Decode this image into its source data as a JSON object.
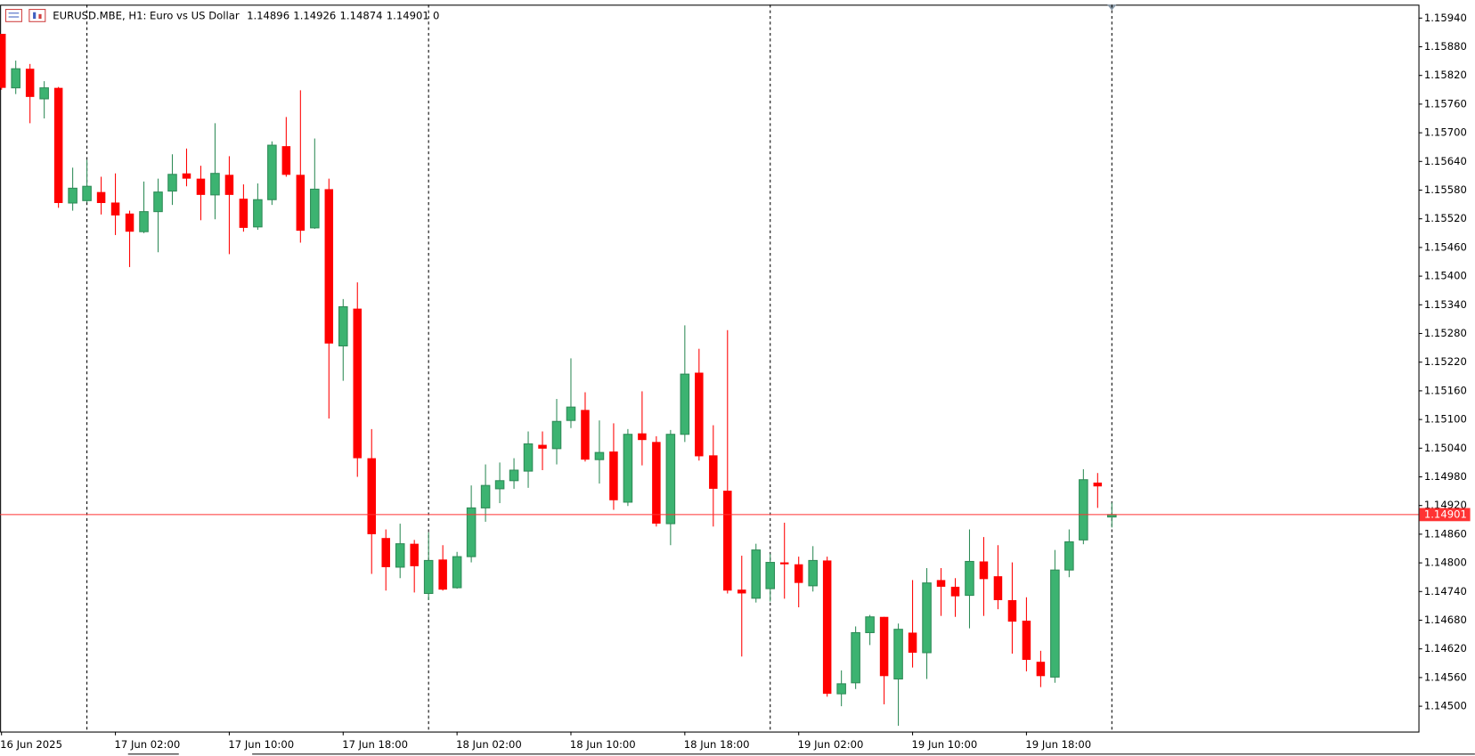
{
  "chart_data": {
    "type": "candlestick",
    "title": "EURUSD.MBE, H1:  Euro vs US Dollar",
    "spread": 0,
    "up_color": "#3cb371",
    "down_color": "#ff0000",
    "price_line_color": "#ff3333",
    "categories": [
      "16 Jun 2025",
      null,
      null,
      null,
      null,
      null,
      null,
      null,
      "17 Jun 02:00",
      null,
      null,
      null,
      null,
      null,
      null,
      null,
      "17 Jun 10:00",
      null,
      null,
      null,
      null,
      null,
      null,
      null,
      "17 Jun 18:00",
      null,
      null,
      null,
      null,
      null,
      null,
      null,
      "18 Jun 02:00",
      null,
      null,
      null,
      null,
      null,
      null,
      null,
      "18 Jun 10:00",
      null,
      null,
      null,
      null,
      null,
      null,
      null,
      "18 Jun 18:00",
      null,
      null,
      null,
      null,
      null,
      null,
      null,
      "19 Jun 02:00",
      null,
      null,
      null,
      null,
      null,
      null,
      null,
      "19 Jun 10:00",
      null,
      null,
      null,
      null,
      null,
      null,
      null,
      "19 Jun 18:00",
      null,
      null,
      null,
      null,
      null,
      null
    ],
    "open": [
      1.15907,
      1.15794,
      1.15834,
      1.15771,
      1.15794,
      1.15553,
      1.15558,
      1.15576,
      1.15554,
      1.15531,
      1.15493,
      1.15535,
      1.15578,
      1.15615,
      1.15604,
      1.1557,
      1.15612,
      1.15562,
      1.15503,
      1.1556,
      1.15672,
      1.15612,
      1.15501,
      1.15582,
      1.15254,
      1.15332,
      1.15019,
      1.14852,
      1.14791,
      1.1484,
      1.14736,
      1.14807,
      1.14748,
      1.14813,
      1.14915,
      1.14955,
      1.14972,
      1.14992,
      1.15047,
      1.15039,
      1.15098,
      1.1512,
      1.15016,
      1.15033,
      1.14927,
      1.15071,
      1.15053,
      1.14882,
      1.15069,
      1.15198,
      1.15025,
      1.14951,
      1.14744,
      1.14726,
      1.14746,
      1.14801,
      1.14797,
      1.14752,
      1.14805,
      1.14526,
      1.14549,
      1.14654,
      1.14687,
      1.14557,
      1.14654,
      1.14612,
      1.14764,
      1.1475,
      1.14732,
      1.14803,
      1.14772,
      1.14722,
      1.14679,
      1.14593,
      1.14561,
      1.14785,
      1.14848,
      1.14968,
      1.14896
    ],
    "high": [
      1.15907,
      1.15851,
      1.15844,
      1.15808,
      1.15796,
      1.15627,
      1.15643,
      1.15608,
      1.15615,
      1.15537,
      1.15598,
      1.15604,
      1.15655,
      1.15667,
      1.15631,
      1.1572,
      1.15651,
      1.15592,
      1.15594,
      1.15682,
      1.15733,
      1.15789,
      1.15688,
      1.15604,
      1.15352,
      1.15387,
      1.1508,
      1.1487,
      1.14882,
      1.14848,
      1.14864,
      1.14837,
      1.14823,
      1.14962,
      1.15006,
      1.1501,
      1.15019,
      1.15075,
      1.15075,
      1.15143,
      1.15228,
      1.15157,
      1.15098,
      1.15092,
      1.1508,
      1.15159,
      1.15065,
      1.15078,
      1.15297,
      1.15248,
      1.15088,
      1.15287,
      1.14815,
      1.1484,
      1.14819,
      1.14884,
      1.14813,
      1.14835,
      1.14813,
      1.14575,
      1.14667,
      1.14691,
      1.14687,
      1.14673,
      1.14764,
      1.14789,
      1.14789,
      1.14768,
      1.1487,
      1.14854,
      1.14837,
      1.14801,
      1.14728,
      1.14616,
      1.14827,
      1.1487,
      1.14996,
      1.14988,
      1.14926
    ],
    "low": [
      1.1579,
      1.15781,
      1.1572,
      1.1573,
      1.15543,
      1.15537,
      1.15554,
      1.15529,
      1.15486,
      1.15419,
      1.1549,
      1.1545,
      1.15549,
      1.15588,
      1.15517,
      1.15519,
      1.15446,
      1.15493,
      1.15497,
      1.15549,
      1.15608,
      1.1547,
      1.15499,
      1.15102,
      1.15181,
      1.1498,
      1.14777,
      1.14742,
      1.14768,
      1.14738,
      1.14722,
      1.14742,
      1.14746,
      1.14801,
      1.14886,
      1.14925,
      1.14955,
      1.14957,
      1.14994,
      1.15006,
      1.15082,
      1.15012,
      1.14966,
      1.14911,
      1.14919,
      1.15004,
      1.14876,
      1.14837,
      1.15053,
      1.15014,
      1.14876,
      1.14736,
      1.14604,
      1.14717,
      1.14719,
      1.14725,
      1.14707,
      1.1474,
      1.1452,
      1.145,
      1.14536,
      1.14628,
      1.14504,
      1.14459,
      1.14581,
      1.14557,
      1.14689,
      1.14687,
      1.14663,
      1.14689,
      1.14703,
      1.1461,
      1.14573,
      1.1454,
      1.14549,
      1.1477,
      1.14839,
      1.14915,
      1.14874
    ],
    "close": [
      1.15794,
      1.15834,
      1.15775,
      1.15794,
      1.15553,
      1.15584,
      1.15588,
      1.15553,
      1.15527,
      1.15493,
      1.15535,
      1.15576,
      1.15613,
      1.15604,
      1.1557,
      1.15615,
      1.1557,
      1.15501,
      1.1556,
      1.15674,
      1.15612,
      1.15495,
      1.15582,
      1.15259,
      1.15336,
      1.15019,
      1.1486,
      1.14791,
      1.1484,
      1.14793,
      1.14805,
      1.14744,
      1.14813,
      1.14915,
      1.14962,
      1.14972,
      1.14994,
      1.15049,
      1.15039,
      1.15096,
      1.15126,
      1.15016,
      1.15031,
      1.14931,
      1.15069,
      1.15057,
      1.14882,
      1.15069,
      1.15195,
      1.15023,
      1.14955,
      1.14742,
      1.14736,
      1.14827,
      1.14801,
      1.14797,
      1.14758,
      1.14805,
      1.14526,
      1.14547,
      1.14654,
      1.14687,
      1.14563,
      1.14661,
      1.14612,
      1.14758,
      1.1475,
      1.1473,
      1.14803,
      1.14766,
      1.14722,
      1.14677,
      1.14597,
      1.14563,
      1.14785,
      1.14844,
      1.14974,
      1.1496,
      1.14901
    ],
    "ylim": [
      1.14447,
      1.15968
    ],
    "yticks": [
      {
        "value": 1.1594,
        "label": "1.15940"
      },
      {
        "value": 1.1588,
        "label": "1.15880"
      },
      {
        "value": 1.1582,
        "label": "1.15820"
      },
      {
        "value": 1.1576,
        "label": "1.15760"
      },
      {
        "value": 1.157,
        "label": "1.15700"
      },
      {
        "value": 1.1564,
        "label": "1.15640"
      },
      {
        "value": 1.1558,
        "label": "1.15580"
      },
      {
        "value": 1.1552,
        "label": "1.15520"
      },
      {
        "value": 1.1546,
        "label": "1.15460"
      },
      {
        "value": 1.154,
        "label": "1.15400"
      },
      {
        "value": 1.1534,
        "label": "1.15340"
      },
      {
        "value": 1.1528,
        "label": "1.15280"
      },
      {
        "value": 1.1522,
        "label": "1.15220"
      },
      {
        "value": 1.1516,
        "label": "1.15160"
      },
      {
        "value": 1.151,
        "label": "1.15100"
      },
      {
        "value": 1.1504,
        "label": "1.15040"
      },
      {
        "value": 1.1498,
        "label": "1.14980"
      },
      {
        "value": 1.1492,
        "label": "1.14920"
      },
      {
        "value": 1.1486,
        "label": "1.14860"
      },
      {
        "value": 1.148,
        "label": "1.14800"
      },
      {
        "value": 1.1474,
        "label": "1.14740"
      },
      {
        "value": 1.1468,
        "label": "1.14680"
      },
      {
        "value": 1.1462,
        "label": "1.14620"
      },
      {
        "value": 1.1456,
        "label": "1.14560"
      },
      {
        "value": 1.145,
        "label": "1.14500"
      }
    ]
  }
}
